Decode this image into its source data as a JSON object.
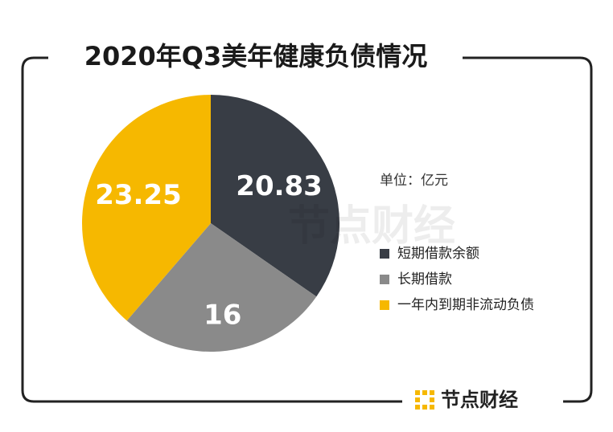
{
  "chart_data": {
    "type": "pie",
    "title": "2020年Q3美年健康负债情况",
    "unit": "单位：亿元",
    "categories": [
      "短期借款余额",
      "长期借款",
      "一年内到期非流动负债"
    ],
    "values": [
      20.83,
      16,
      23.25
    ],
    "colors": [
      "#383d45",
      "#8a8a8a",
      "#f6b800"
    ]
  },
  "watermark": "节点财经",
  "brand": "节点财经"
}
